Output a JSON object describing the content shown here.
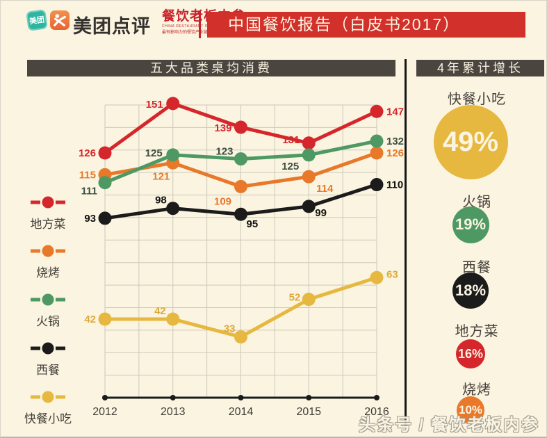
{
  "header": {
    "meituan_icon_label": "美团",
    "brand_name": "美团点评",
    "partner": {
      "title": "餐饮老板内参",
      "subtitle_en": "CHINA RESTAURANT INSIDER",
      "tagline": "最有影响力的餐饮产业链新媒体"
    },
    "banner_title": "中国餐饮报告（白皮书2017）"
  },
  "left_section": {
    "title": "五大品类桌均消费"
  },
  "right_section": {
    "title": "4年累计增长",
    "items": [
      {
        "label": "快餐小吃",
        "value": "49%",
        "color": "#E7B83F"
      },
      {
        "label": "火锅",
        "value": "19%",
        "color": "#4E9963"
      },
      {
        "label": "西餐",
        "value": "18%",
        "color": "#1B1B1B"
      },
      {
        "label": "地方菜",
        "value": "16%",
        "color": "#D5262B"
      },
      {
        "label": "烧烤",
        "value": "10%",
        "color": "#E8782A"
      }
    ]
  },
  "chart_data": {
    "type": "line",
    "title": "五大品类桌均消费",
    "x": [
      "2012",
      "2013",
      "2014",
      "2015",
      "2016"
    ],
    "series": [
      {
        "name": "地方菜",
        "color": "#D5262B",
        "label_color": "#D5262B",
        "values": [
          126,
          151,
          139,
          131,
          147
        ]
      },
      {
        "name": "烧烤",
        "color": "#E8782A",
        "label_color": "#E8782A",
        "values": [
          115,
          121,
          109,
          114,
          126
        ]
      },
      {
        "name": "火锅",
        "color": "#4E9963",
        "label_color": "#3C4F41",
        "values": [
          111,
          125,
          123,
          125,
          132
        ]
      },
      {
        "name": "西餐",
        "color": "#1B1B1B",
        "label_color": "#111111",
        "values": [
          93,
          98,
          95,
          99,
          110
        ]
      },
      {
        "name": "快餐小吃",
        "color": "#E7B83F",
        "label_color": "#DFA93A",
        "values": [
          42,
          42,
          33,
          52,
          63
        ]
      }
    ],
    "ylim": [
      0,
      157
    ],
    "grid": true,
    "legend_position": "left",
    "grid_color": "#CCC9BD",
    "axis_color": "#1B1B1B"
  },
  "watermark": "头条号 / 餐饮老板内参"
}
